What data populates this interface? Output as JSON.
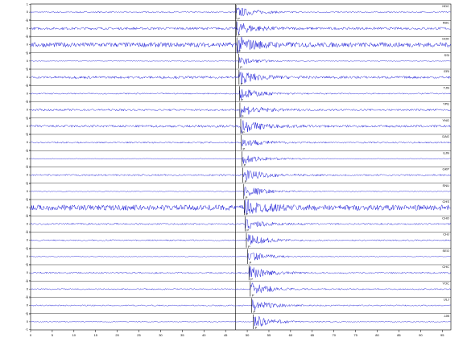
{
  "chart_data": {
    "type": "seismogram",
    "xlim": [
      0,
      97
    ],
    "xticks": [
      0,
      5,
      10,
      15,
      20,
      25,
      30,
      35,
      40,
      45,
      50,
      55,
      60,
      65,
      70,
      75,
      80,
      85,
      90,
      95
    ],
    "ylim": [
      -1,
      1
    ],
    "yticks": [
      -1,
      0,
      1
    ],
    "origin_time": 47.3,
    "color": "#1f1fd6",
    "traces": [
      {
        "name": "HDC",
        "pick": 47.4,
        "phase": "P",
        "amplitude": 0.7,
        "noise": 0.08
      },
      {
        "name": "KBC",
        "pick": 47.5,
        "phase": "P",
        "amplitude": 0.8,
        "noise": 0.15
      },
      {
        "name": "HOK",
        "pick": 47.6,
        "phase": "P",
        "amplitude": 0.95,
        "noise": 0.3
      },
      {
        "name": "SSI",
        "pick": 48.0,
        "phase": "P",
        "amplitude": 0.5,
        "noise": 0.05
      },
      {
        "name": "ERI",
        "pick": 48.1,
        "phase": "P",
        "amplitude": 0.85,
        "noise": 0.15
      },
      {
        "name": "TJN",
        "pick": 48.2,
        "phase": "P",
        "amplitude": 0.8,
        "noise": 0.08
      },
      {
        "name": "YPE",
        "pick": 48.3,
        "phase": "P",
        "amplitude": 0.8,
        "noise": 0.12
      },
      {
        "name": "YNG",
        "pick": 48.5,
        "phase": "P",
        "amplitude": 0.9,
        "noise": 0.15
      },
      {
        "name": "DAG",
        "pick": 48.6,
        "phase": "P",
        "amplitude": 0.6,
        "noise": 0.1
      },
      {
        "name": "UJN",
        "pick": 48.8,
        "phase": "P",
        "amplitude": 0.7,
        "noise": 0.05
      },
      {
        "name": "GKP",
        "pick": 49.0,
        "phase": "P",
        "amplitude": 0.9,
        "noise": 0.1
      },
      {
        "name": "SNU",
        "pick": 49.2,
        "phase": "P",
        "amplitude": 0.8,
        "noise": 0.06
      },
      {
        "name": "CHS",
        "pick": 49.3,
        "phase": "P",
        "amplitude": 0.9,
        "noise": 0.35
      },
      {
        "name": "CHO",
        "pick": 49.5,
        "phase": "P",
        "amplitude": 0.7,
        "noise": 0.1
      },
      {
        "name": "CHJ",
        "pick": 49.8,
        "phase": "P",
        "amplitude": 0.8,
        "noise": 0.08
      },
      {
        "name": "SEO",
        "pick": 50.1,
        "phase": "P",
        "amplitude": 0.7,
        "noise": 0.05
      },
      {
        "name": "CHC",
        "pick": 50.4,
        "phase": "P",
        "amplitude": 0.8,
        "noise": 0.1
      },
      {
        "name": "YOC",
        "pick": 50.7,
        "phase": "P",
        "amplitude": 0.85,
        "noise": 0.08
      },
      {
        "name": "ULJ",
        "pick": 51.0,
        "phase": "P",
        "amplitude": 0.8,
        "noise": 0.08
      },
      {
        "name": "JJB",
        "pick": 51.4,
        "phase": "P",
        "amplitude": 0.9,
        "noise": 0.06
      }
    ]
  }
}
